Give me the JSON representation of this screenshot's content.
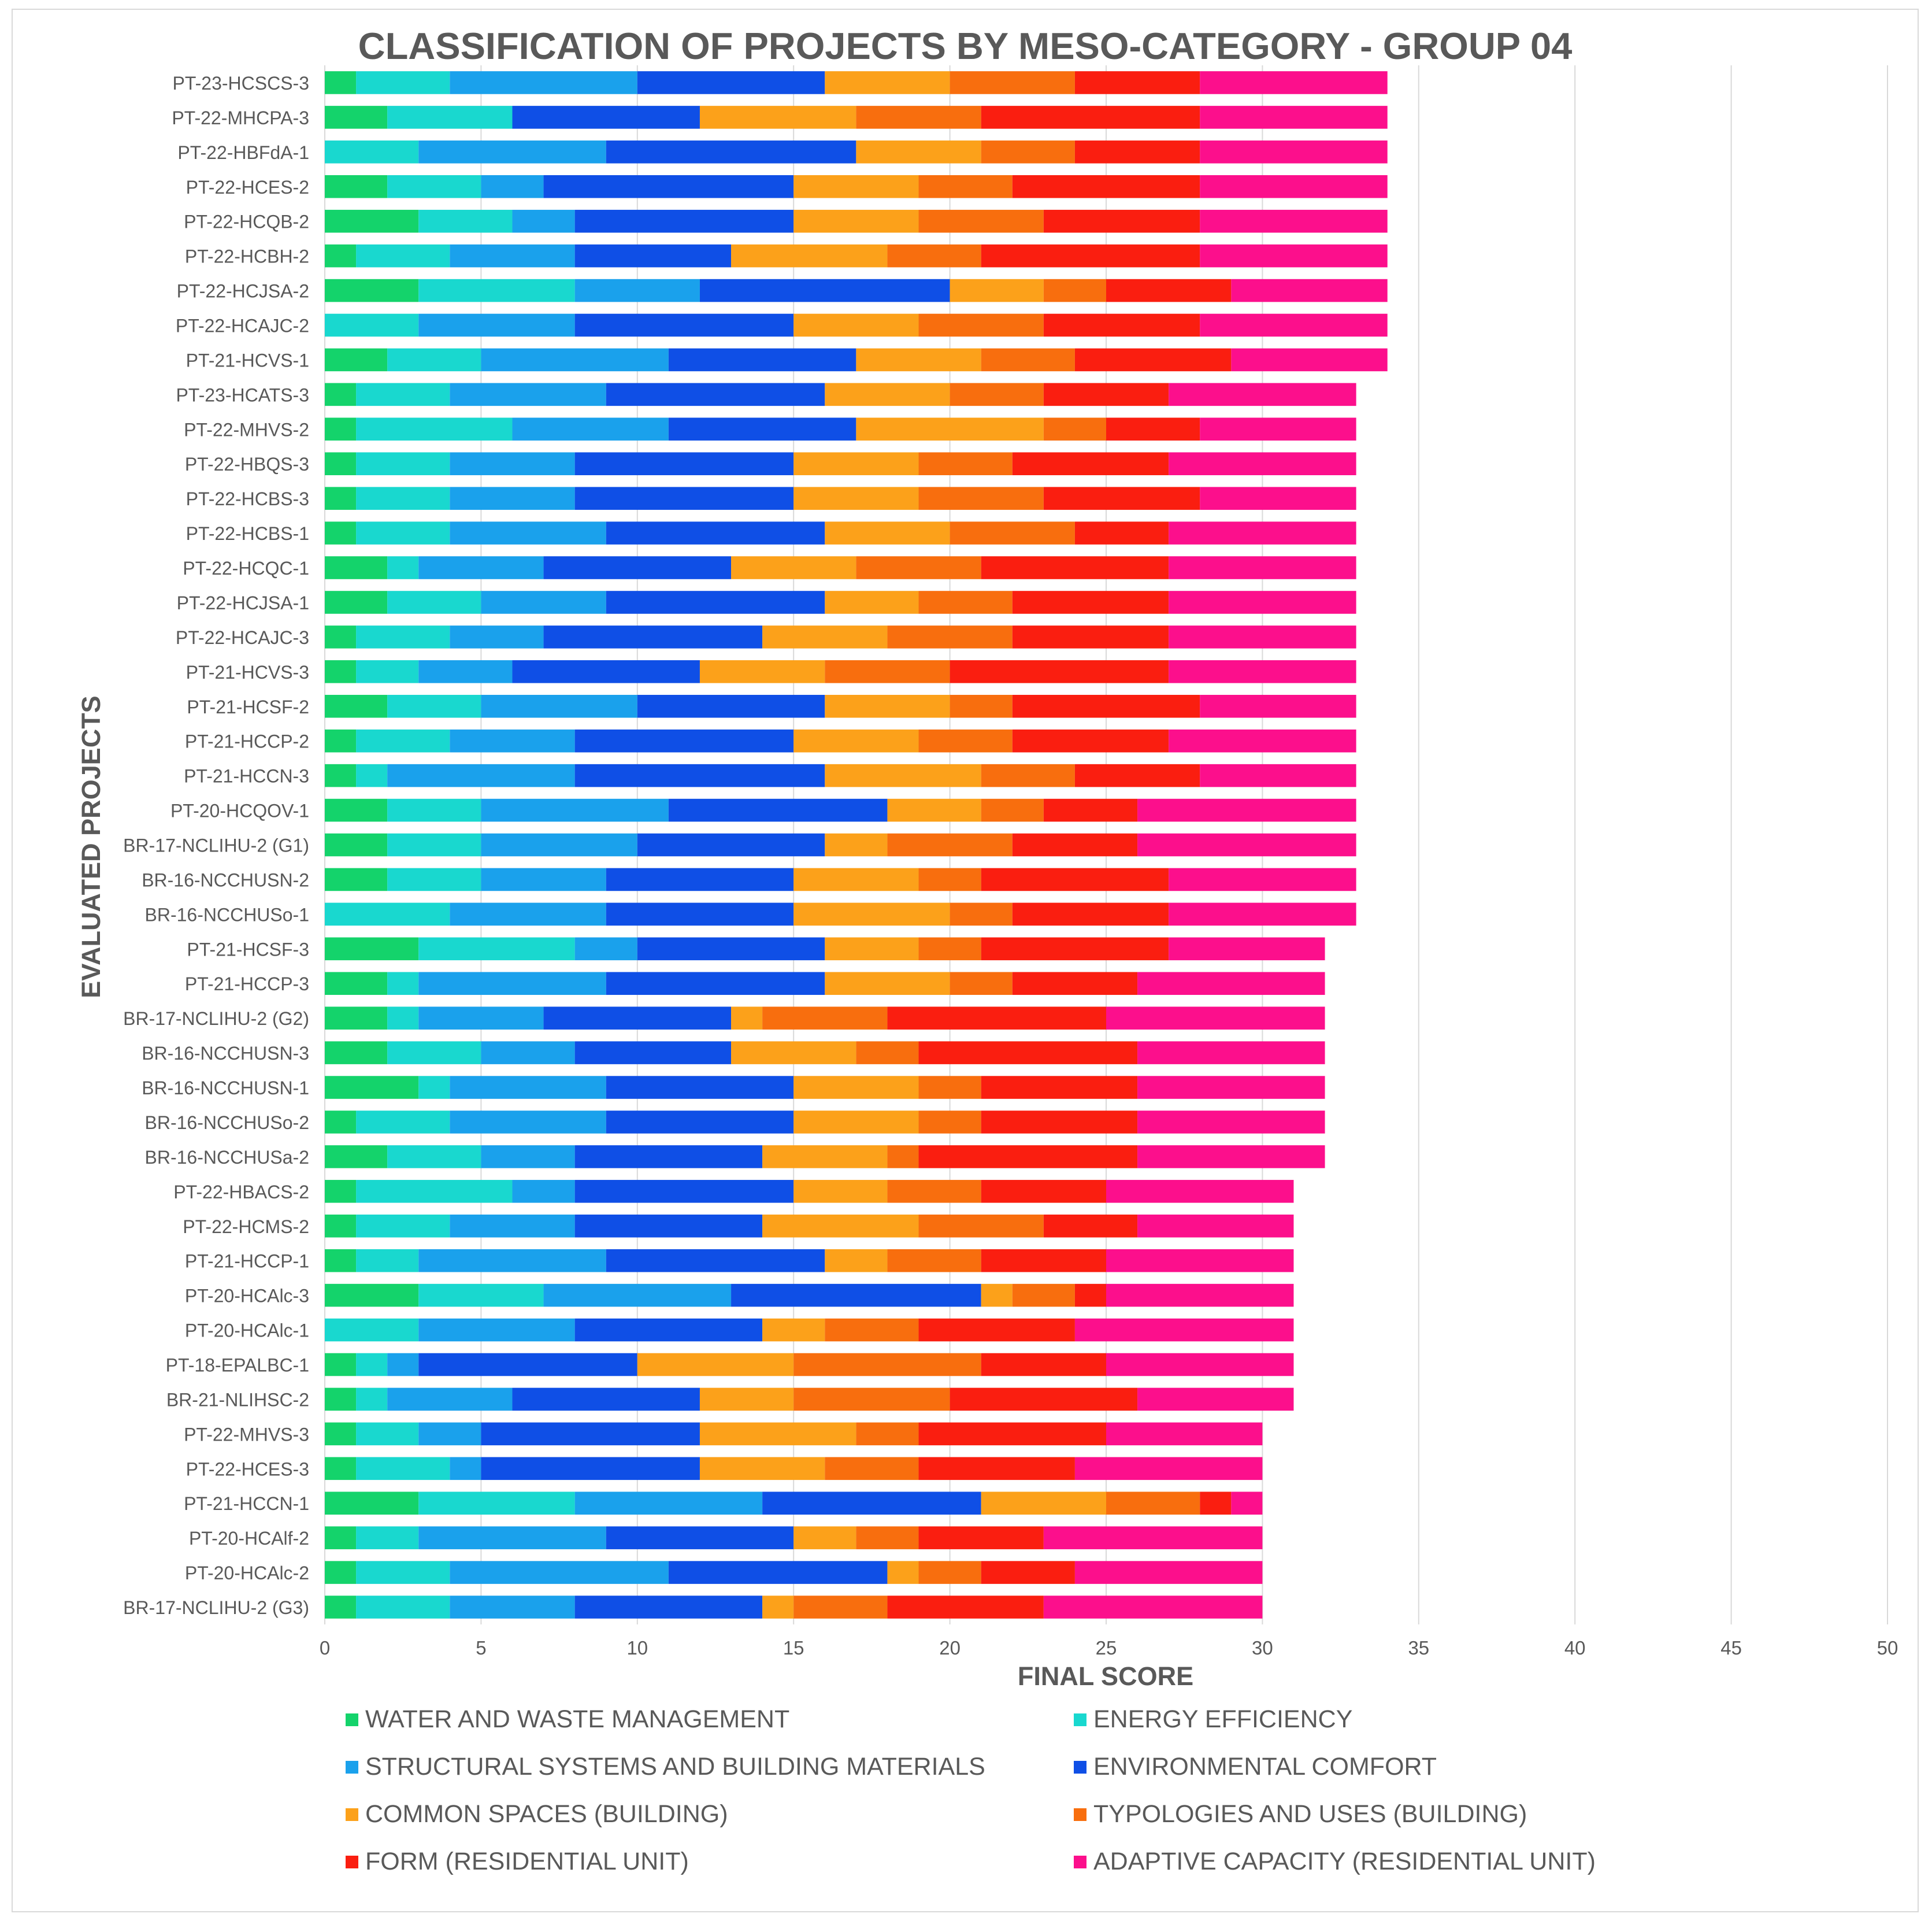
{
  "chart_data": {
    "type": "bar",
    "orientation": "horizontal",
    "stacked": true,
    "title": "CLASSIFICATION OF PROJECTS BY MESO-CATEGORY - GROUP 04",
    "xlabel": "FINAL SCORE",
    "ylabel": "EVALUATED PROJECTS",
    "xlim": [
      0,
      50
    ],
    "xticks": [
      0,
      5,
      10,
      15,
      20,
      25,
      30,
      35,
      40,
      45,
      50
    ],
    "grid": "vertical",
    "legend_position": "bottom",
    "categories": [
      "PT-23-HCSCS-3",
      "PT-22-MHCPA-3",
      "PT-22-HBFdA-1",
      "PT-22-HCES-2",
      "PT-22-HCQB-2",
      "PT-22-HCBH-2",
      "PT-22-HCJSA-2",
      "PT-22-HCAJC-2",
      "PT-21-HCVS-1",
      "PT-23-HCATS-3",
      "PT-22-MHVS-2",
      "PT-22-HBQS-3",
      "PT-22-HCBS-3",
      "PT-22-HCBS-1",
      "PT-22-HCQC-1",
      "PT-22-HCJSA-1",
      "PT-22-HCAJC-3",
      "PT-21-HCVS-3",
      "PT-21-HCSF-2",
      "PT-21-HCCP-2",
      "PT-21-HCCN-3",
      "PT-20-HCQOV-1",
      "BR-17-NCLIHU-2 (G1)",
      "BR-16-NCCHUSN-2",
      "BR-16-NCCHUSo-1",
      "PT-21-HCSF-3",
      "PT-21-HCCP-3",
      "BR-17-NCLIHU-2 (G2)",
      "BR-16-NCCHUSN-3",
      "BR-16-NCCHUSN-1",
      "BR-16-NCCHUSo-2",
      "BR-16-NCCHUSa-2",
      "PT-22-HBACS-2",
      "PT-22-HCMS-2",
      "PT-21-HCCP-1",
      "PT-20-HCAlc-3",
      "PT-20-HCAlc-1",
      "PT-18-EPALBC-1",
      "BR-21-NLIHSC-2",
      "PT-22-MHVS-3",
      "PT-22-HCES-3",
      "PT-21-HCCN-1",
      "PT-20-HCAlf-2",
      "PT-20-HCAlc-2",
      "BR-17-NCLIHU-2 (G3)"
    ],
    "series": [
      {
        "name": "WATER AND WASTE MANAGEMENT",
        "color": "#14d36b",
        "values": [
          1,
          2,
          0,
          2,
          3,
          1,
          3,
          0,
          2,
          1,
          1,
          1,
          1,
          1,
          2,
          2,
          1,
          1,
          2,
          1,
          1,
          2,
          2,
          2,
          0,
          3,
          2,
          2,
          2,
          3,
          1,
          2,
          1,
          1,
          1,
          3,
          0,
          1,
          1,
          1,
          1,
          3,
          1,
          1,
          1
        ]
      },
      {
        "name": "ENERGY EFFICIENCY",
        "color": "#19d8cf",
        "values": [
          3,
          4,
          3,
          3,
          3,
          3,
          5,
          3,
          3,
          3,
          5,
          3,
          3,
          3,
          1,
          3,
          3,
          2,
          3,
          3,
          1,
          3,
          3,
          3,
          4,
          5,
          1,
          1,
          3,
          1,
          3,
          3,
          5,
          3,
          2,
          4,
          3,
          1,
          1,
          2,
          3,
          5,
          2,
          3,
          3
        ]
      },
      {
        "name": "STRUCTURAL SYSTEMS AND BUILDING MATERIALS",
        "color": "#1aa1ec",
        "values": [
          6,
          0,
          6,
          2,
          2,
          4,
          4,
          5,
          6,
          5,
          5,
          4,
          4,
          5,
          4,
          4,
          3,
          3,
          5,
          4,
          6,
          6,
          5,
          4,
          5,
          2,
          6,
          4,
          3,
          5,
          5,
          3,
          2,
          4,
          6,
          6,
          5,
          1,
          4,
          2,
          1,
          6,
          6,
          7,
          4
        ]
      },
      {
        "name": "ENVIRONMENTAL COMFORT",
        "color": "#0f4fe6",
        "values": [
          6,
          6,
          8,
          8,
          7,
          5,
          8,
          7,
          6,
          7,
          6,
          7,
          7,
          7,
          6,
          7,
          7,
          6,
          6,
          7,
          8,
          7,
          6,
          6,
          6,
          6,
          7,
          6,
          5,
          6,
          6,
          6,
          7,
          6,
          7,
          8,
          6,
          7,
          6,
          7,
          7,
          7,
          6,
          7,
          6
        ]
      },
      {
        "name": "COMMON SPACES (BUILDING)",
        "color": "#fca11a",
        "values": [
          4,
          5,
          4,
          4,
          4,
          5,
          3,
          4,
          4,
          4,
          6,
          4,
          4,
          4,
          4,
          3,
          4,
          4,
          4,
          4,
          5,
          3,
          2,
          4,
          5,
          3,
          4,
          1,
          4,
          4,
          4,
          4,
          3,
          5,
          2,
          1,
          2,
          5,
          3,
          5,
          4,
          4,
          2,
          1,
          1
        ]
      },
      {
        "name": "TYPOLOGIES AND USES (BUILDING)",
        "color": "#f86e0e",
        "values": [
          4,
          4,
          3,
          3,
          4,
          3,
          2,
          4,
          3,
          3,
          2,
          3,
          4,
          4,
          4,
          3,
          4,
          4,
          2,
          3,
          3,
          2,
          4,
          2,
          2,
          2,
          2,
          4,
          2,
          2,
          2,
          1,
          3,
          4,
          3,
          2,
          3,
          6,
          5,
          2,
          3,
          3,
          2,
          2,
          3
        ]
      },
      {
        "name": "FORM (RESIDENTIAL UNIT)",
        "color": "#fa1e10",
        "values": [
          4,
          7,
          4,
          6,
          5,
          7,
          4,
          5,
          5,
          4,
          3,
          5,
          5,
          3,
          6,
          5,
          5,
          7,
          6,
          5,
          4,
          3,
          4,
          6,
          5,
          6,
          4,
          7,
          7,
          5,
          5,
          7,
          4,
          3,
          4,
          1,
          5,
          4,
          6,
          6,
          5,
          1,
          4,
          3,
          5
        ]
      },
      {
        "name": "ADAPTIVE CAPACITY (RESIDENTIAL UNIT)",
        "color": "#fc0f8c",
        "values": [
          6,
          6,
          6,
          6,
          6,
          6,
          5,
          6,
          5,
          6,
          5,
          6,
          5,
          6,
          6,
          6,
          6,
          6,
          5,
          6,
          5,
          7,
          7,
          6,
          6,
          5,
          6,
          7,
          6,
          6,
          6,
          6,
          6,
          5,
          6,
          6,
          7,
          6,
          5,
          5,
          6,
          1,
          7,
          6,
          7
        ]
      }
    ]
  }
}
